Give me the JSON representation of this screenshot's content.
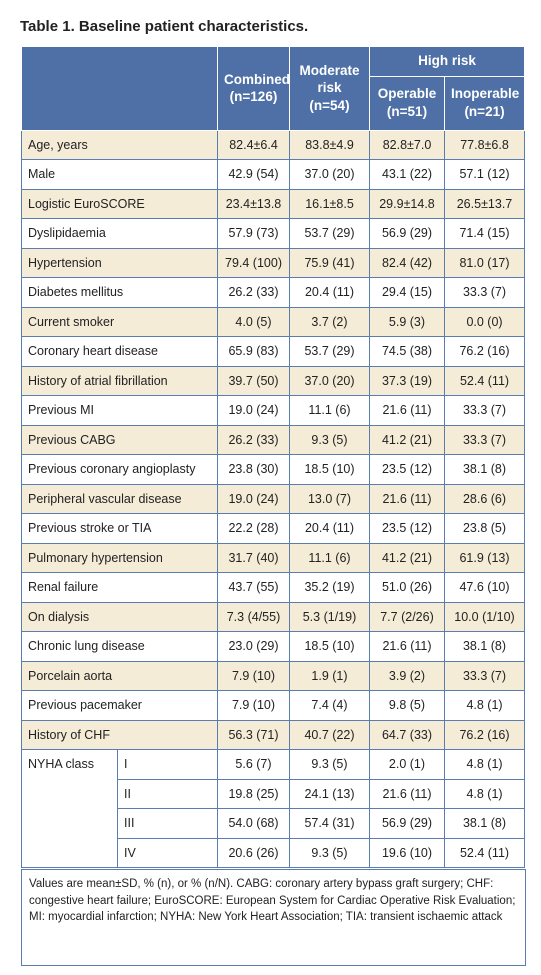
{
  "title": "Table 1. Baseline patient characteristics.",
  "table": {
    "header": {
      "combined": "Combined (n=126)",
      "moderate": "Moderate risk (n=54)",
      "high_risk": "High risk",
      "operable": "Operable (n=51)",
      "inoperable": "Inoperable (n=21)"
    },
    "rows": [
      [
        "Age, years",
        "82.4±6.4",
        "83.8±4.9",
        "82.8±7.0",
        "77.8±6.8"
      ],
      [
        "Male",
        "42.9 (54)",
        "37.0 (20)",
        "43.1 (22)",
        "57.1 (12)"
      ],
      [
        "Logistic EuroSCORE",
        "23.4±13.8",
        "16.1±8.5",
        "29.9±14.8",
        "26.5±13.7"
      ],
      [
        "Dyslipidaemia",
        "57.9 (73)",
        "53.7 (29)",
        "56.9 (29)",
        "71.4 (15)"
      ],
      [
        "Hypertension",
        "79.4 (100)",
        "75.9 (41)",
        "82.4 (42)",
        "81.0 (17)"
      ],
      [
        "Diabetes mellitus",
        "26.2 (33)",
        "20.4 (11)",
        "29.4 (15)",
        "33.3 (7)"
      ],
      [
        "Current smoker",
        "4.0 (5)",
        "3.7 (2)",
        "5.9 (3)",
        "0.0 (0)"
      ],
      [
        "Coronary heart disease",
        "65.9 (83)",
        "53.7 (29)",
        "74.5 (38)",
        "76.2 (16)"
      ],
      [
        "History of atrial fibrillation",
        "39.7 (50)",
        "37.0 (20)",
        "37.3 (19)",
        "52.4 (11)"
      ],
      [
        "Previous MI",
        "19.0 (24)",
        "11.1 (6)",
        "21.6 (11)",
        "33.3 (7)"
      ],
      [
        "Previous CABG",
        "26.2 (33)",
        "9.3 (5)",
        "41.2 (21)",
        "33.3 (7)"
      ],
      [
        "Previous coronary angioplasty",
        "23.8 (30)",
        "18.5 (10)",
        "23.5 (12)",
        "38.1 (8)"
      ],
      [
        "Peripheral vascular disease",
        "19.0 (24)",
        "13.0 (7)",
        "21.6 (11)",
        "28.6 (6)"
      ],
      [
        "Previous stroke or TIA",
        "22.2 (28)",
        "20.4 (11)",
        "23.5 (12)",
        "23.8 (5)"
      ],
      [
        "Pulmonary hypertension",
        "31.7 (40)",
        "11.1 (6)",
        "41.2 (21)",
        "61.9 (13)"
      ],
      [
        "Renal failure",
        "43.7 (55)",
        "35.2 (19)",
        "51.0 (26)",
        "47.6 (10)"
      ],
      [
        "On dialysis",
        "7.3 (4/55)",
        "5.3 (1/19)",
        "7.7 (2/26)",
        "10.0 (1/10)"
      ],
      [
        "Chronic lung disease",
        "23.0 (29)",
        "18.5 (10)",
        "21.6 (11)",
        "38.1 (8)"
      ],
      [
        "Porcelain aorta",
        "7.9 (10)",
        "1.9 (1)",
        "3.9 (2)",
        "33.3 (7)"
      ],
      [
        "Previous pacemaker",
        "7.9 (10)",
        "7.4 (4)",
        "9.8 (5)",
        "4.8 (1)"
      ],
      [
        "History of CHF",
        "56.3 (71)",
        "40.7 (22)",
        "64.7 (33)",
        "76.2 (16)"
      ]
    ],
    "nyha": {
      "label": "NYHA class",
      "rows": [
        [
          "I",
          "5.6 (7)",
          "9.3 (5)",
          "2.0 (1)",
          "4.8 (1)"
        ],
        [
          "II",
          "19.8 (25)",
          "24.1 (13)",
          "21.6 (11)",
          "4.8 (1)"
        ],
        [
          "III",
          "54.0 (68)",
          "57.4 (31)",
          "56.9 (29)",
          "38.1 (8)"
        ],
        [
          "IV",
          "20.6 (26)",
          "9.3 (5)",
          "19.6 (10)",
          "52.4 (11)"
        ]
      ]
    },
    "footnote": "Values are mean±SD, % (n), or % (n/N). CABG: coronary artery bypass graft surgery; CHF: congestive heart failure; EuroSCORE: European System for Cardiac Operative Risk Evaluation; MI: myocardial infarction; NYHA: New York Heart Association; TIA: transient ischaemic attack"
  }
}
